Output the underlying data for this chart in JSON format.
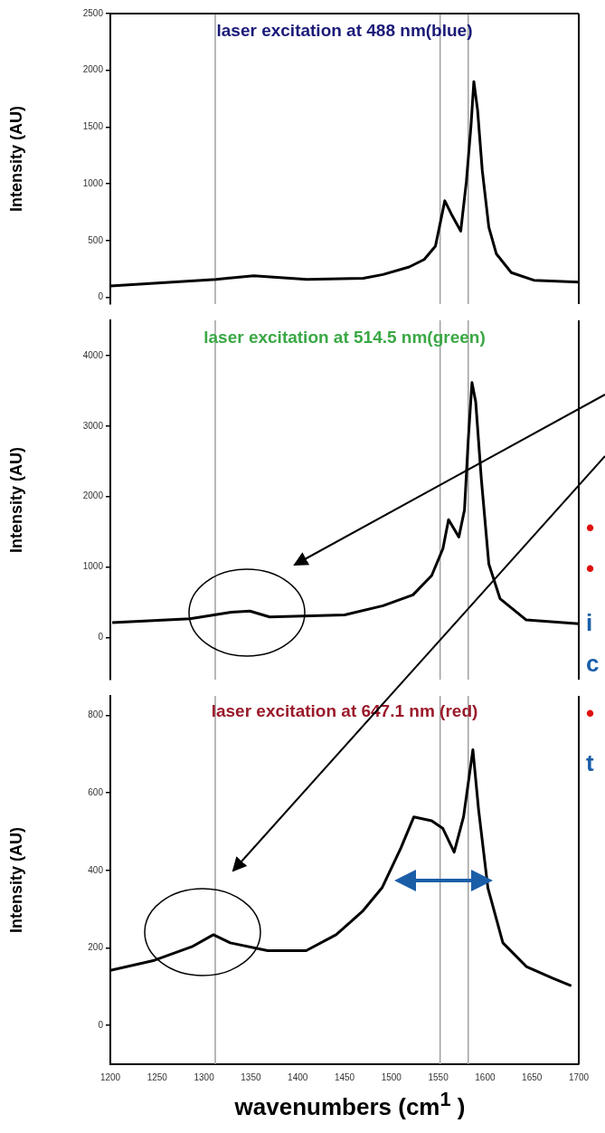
{
  "chart_data": [
    {
      "type": "line",
      "title": "laser excitation at 488 nm(blue)",
      "ylabel": "Intensity (AU)",
      "tick_labels": "y",
      "x": [
        1200,
        1313,
        1353,
        1410,
        1470,
        1491,
        1519,
        1535,
        1547,
        1557,
        1565,
        1574,
        1580,
        1585,
        1588,
        1592,
        1597,
        1604,
        1612,
        1628,
        1652,
        1700
      ],
      "series": [
        {
          "color": "#000000",
          "values": [
            100,
            157,
            190,
            157,
            167,
            200,
            267,
            333,
            450,
            850,
            717,
            583,
            1017,
            1517,
            1900,
            1650,
            1117,
            617,
            383,
            217,
            150,
            133
          ]
        }
      ],
      "xlim": [
        1200,
        1700
      ],
      "xticks": [
        1200,
        1250,
        1300,
        1350,
        1400,
        1450,
        1500,
        1550,
        1600,
        1650,
        1700
      ],
      "ylim": [
        -60,
        2500
      ],
      "yticks": [
        0,
        500,
        1000,
        1500,
        2000,
        2500
      ],
      "ref_lines": [
        {
          "axis": "x",
          "value": 1312,
          "color": "#a0a0a0"
        },
        {
          "axis": "x",
          "value": 1552,
          "color": "#a0a0a0"
        },
        {
          "axis": "x",
          "value": 1582,
          "color": "#a0a0a0"
        }
      ]
    },
    {
      "type": "line",
      "title": "laser excitation at 514.5 nm(green)",
      "ylabel": "Intensity (AU)",
      "tick_labels": "y",
      "x": [
        1202,
        1285,
        1329,
        1349,
        1370,
        1450,
        1491,
        1523,
        1543,
        1555,
        1561,
        1572,
        1578,
        1582,
        1586,
        1590,
        1596,
        1604,
        1616,
        1644,
        1700
      ],
      "series": [
        {
          "color": "#000000",
          "values": [
            208,
            263,
            356,
            373,
            290,
            318,
            449,
            603,
            877,
            1260,
            1671,
            1425,
            1808,
            2795,
            3616,
            3342,
            2247,
            1041,
            548,
            247,
            192
          ]
        }
      ],
      "xlim": [
        1200,
        1700
      ],
      "xticks": [
        1200,
        1250,
        1300,
        1350,
        1400,
        1450,
        1500,
        1550,
        1600,
        1650,
        1700
      ],
      "ylim": [
        -600,
        4500
      ],
      "yticks": [
        0,
        1000,
        2000,
        3000,
        4000
      ],
      "ref_lines": [
        {
          "axis": "x",
          "value": 1312,
          "color": "#a0a0a0"
        },
        {
          "axis": "x",
          "value": 1552,
          "color": "#a0a0a0"
        },
        {
          "axis": "x",
          "value": 1582,
          "color": "#a0a0a0"
        }
      ],
      "annotations": [
        "•",
        "•",
        "i",
        "c"
      ]
    },
    {
      "type": "line",
      "title": "laser excitation at 647.1 nm (red)",
      "ylabel": "Intensity (AU)",
      "xlabel": "wavenumbers (cm$^{1}$ )",
      "x": [
        1200,
        1247,
        1287,
        1310,
        1328,
        1368,
        1409,
        1441,
        1469,
        1490,
        1510,
        1524,
        1543,
        1555,
        1567,
        1577,
        1587,
        1593,
        1603,
        1619,
        1644,
        1672,
        1692
      ],
      "series": [
        {
          "color": "#000000",
          "values": [
            142,
            168,
            203,
            234,
            213,
            193,
            193,
            234,
            294,
            355,
            457,
            538,
            528,
            508,
            447,
            538,
            711,
            558,
            355,
            213,
            152,
            122,
            102
          ]
        }
      ],
      "xlim": [
        1200,
        1700
      ],
      "xticks": [
        1200,
        1250,
        1300,
        1350,
        1400,
        1450,
        1500,
        1550,
        1600,
        1650,
        1700
      ],
      "ylim": [
        -100,
        850
      ],
      "yticks": [
        0,
        200,
        400,
        600,
        800
      ],
      "ref_lines": [
        {
          "axis": "x",
          "value": 1312,
          "color": "#a0a0a0"
        },
        {
          "axis": "x",
          "value": 1552,
          "color": "#a0a0a0"
        },
        {
          "axis": "x",
          "value": 1582,
          "color": "#a0a0a0"
        }
      ],
      "annotations": [
        "•",
        "t"
      ]
    }
  ]
}
